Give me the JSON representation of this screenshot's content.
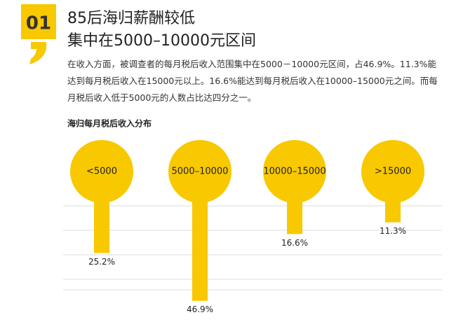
{
  "header": {
    "number": "01",
    "title_lines": [
      "85后海归薪酬较低",
      "集中在5000–10000元区间"
    ]
  },
  "paragraph": "在收入方面，被调查者的每月税后收入范围集中在5000－10000元区间，占46.9%。11.3%能达到每月税后收入在15000元以上。16.6%能达到每月税后收入在10000–15000元之间。而每月税后收入低于5000元的人数占比达四分之一。",
  "chart_data": {
    "type": "lollipop",
    "title": "海归每月税后收入分布",
    "categories": [
      "<5000",
      "5000–10000",
      "10000–15000",
      ">15000"
    ],
    "values": [
      25.2,
      46.9,
      16.6,
      11.3
    ],
    "value_labels": [
      "25.2%",
      "46.9%",
      "16.6%",
      "11.3%"
    ],
    "color": "#f8c800"
  }
}
